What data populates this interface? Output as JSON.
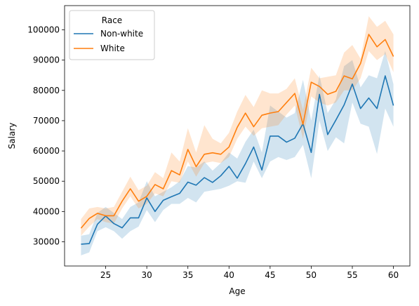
{
  "chart_data": {
    "type": "line",
    "xlabel": "Age",
    "ylabel": "Salary",
    "xlim": [
      20,
      62
    ],
    "ylim": [
      22000,
      108000
    ],
    "x_ticks": [
      25,
      30,
      35,
      40,
      45,
      50,
      55,
      60
    ],
    "y_ticks": [
      30000,
      40000,
      50000,
      60000,
      70000,
      80000,
      90000,
      100000
    ],
    "grid": false,
    "legend": {
      "title": "Race",
      "placement": "top-left"
    },
    "x": [
      22,
      23,
      24,
      25,
      26,
      27,
      28,
      29,
      30,
      31,
      32,
      33,
      34,
      35,
      36,
      37,
      38,
      39,
      40,
      41,
      42,
      43,
      44,
      45,
      46,
      47,
      48,
      49,
      50,
      51,
      52,
      53,
      54,
      55,
      56,
      57,
      58,
      59,
      60
    ],
    "series": [
      {
        "name": "Non-white",
        "color": "#1f77b4",
        "values": [
          29200,
          29400,
          35800,
          38500,
          36000,
          34600,
          37900,
          37900,
          44500,
          40000,
          43700,
          44900,
          46000,
          49700,
          48700,
          51200,
          49600,
          51800,
          54900,
          51000,
          55800,
          61300,
          53700,
          64900,
          64900,
          62900,
          64200,
          69000,
          59500,
          78700,
          65400,
          70200,
          75200,
          82100,
          74000,
          77500,
          74000,
          84800,
          75000
        ],
        "ci_lower": [
          25500,
          26500,
          33500,
          34800,
          33500,
          31000,
          33500,
          35000,
          40500,
          36500,
          40500,
          42500,
          42500,
          44500,
          43000,
          46500,
          47000,
          47500,
          48500,
          50000,
          49500,
          56500,
          51000,
          56500,
          58000,
          57000,
          58000,
          62000,
          51000,
          70000,
          60000,
          64500,
          62500,
          76000,
          69000,
          68000,
          59000,
          74000,
          68000
        ],
        "ci_upper": [
          32000,
          32500,
          39500,
          41500,
          39500,
          37500,
          41500,
          43000,
          50000,
          45000,
          46500,
          48000,
          50000,
          55000,
          54500,
          56500,
          53500,
          56000,
          59500,
          57500,
          63000,
          67000,
          59500,
          75000,
          73000,
          71000,
          72500,
          83500,
          70000,
          85000,
          72500,
          77000,
          88000,
          90000,
          81000,
          85000,
          84000,
          93000,
          82000
        ]
      },
      {
        "name": "White",
        "color": "#ff7f0e",
        "values": [
          34500,
          37700,
          39400,
          38600,
          38600,
          43400,
          47500,
          43400,
          45000,
          48900,
          47500,
          53500,
          52100,
          60500,
          54800,
          58900,
          59400,
          58900,
          61300,
          67800,
          72500,
          68000,
          71800,
          72500,
          73000,
          76000,
          79000,
          68800,
          82700,
          81300,
          78700,
          79700,
          84800,
          83800,
          88900,
          98500,
          94400,
          96800,
          91200
        ],
        "ci_lower": [
          32000,
          35000,
          37500,
          36500,
          36000,
          41000,
          45000,
          41000,
          42500,
          46000,
          45000,
          50000,
          49500,
          56500,
          51500,
          56000,
          56500,
          56000,
          58000,
          64000,
          68000,
          65000,
          67500,
          68000,
          68500,
          72000,
          75000,
          64000,
          78000,
          76000,
          75000,
          76000,
          80000,
          80000,
          84000,
          93000,
          90000,
          92000,
          86000
        ],
        "ci_upper": [
          37500,
          41000,
          41500,
          41000,
          41500,
          46500,
          51500,
          47000,
          48500,
          53000,
          51000,
          59500,
          56500,
          67500,
          59500,
          68500,
          64000,
          62500,
          66000,
          73000,
          78500,
          74500,
          80000,
          79000,
          79000,
          80500,
          84000,
          73500,
          87500,
          84000,
          84500,
          85000,
          92500,
          95000,
          90500,
          104500,
          101000,
          103000,
          98500
        ]
      }
    ]
  }
}
